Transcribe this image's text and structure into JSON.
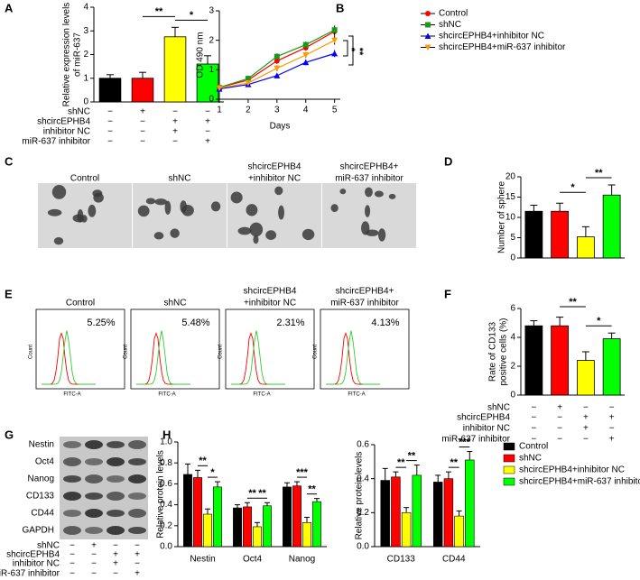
{
  "chart_data": [
    {
      "panel": "A",
      "type": "bar",
      "y_label": [
        "Relative expression levels",
        "of miR-637"
      ],
      "values": [
        1.0,
        1.0,
        2.75,
        1.6
      ],
      "errors": [
        0.15,
        0.25,
        0.4,
        0.35
      ],
      "colors": [
        "#000000",
        "#ff0000",
        "#ffff00",
        "#00ff00"
      ],
      "ylim": [
        0,
        4
      ],
      "yticks": [
        0,
        1,
        2,
        3,
        4
      ],
      "annotations": [
        "**",
        "*"
      ],
      "conditions": [
        {
          "label": "shNC",
          "marks": [
            "−",
            "+",
            "−",
            "−"
          ]
        },
        {
          "label": "shcircEPHB4",
          "marks": [
            "−",
            "−",
            "+",
            "+"
          ]
        },
        {
          "label": "inhibitor NC",
          "marks": [
            "−",
            "−",
            "+",
            "−"
          ]
        },
        {
          "label": "miR-637 inhibitor",
          "marks": [
            "−",
            "−",
            "−",
            "+"
          ]
        }
      ]
    },
    {
      "panel": "B",
      "type": "line",
      "x": [
        1,
        2,
        3,
        4,
        5
      ],
      "xlim": [
        1,
        5.2
      ],
      "xticks": [
        1,
        2,
        3,
        4,
        5
      ],
      "x_label": "Days",
      "y_label": "OD 490 nm",
      "ylim": [
        0,
        3
      ],
      "yticks": [
        0,
        1,
        2,
        3
      ],
      "series": [
        {
          "name": "Control",
          "color": "#ff0000",
          "marker": "circle",
          "values": [
            0.4,
            0.65,
            1.3,
            1.75,
            2.3
          ],
          "errors": [
            0.05,
            0.1,
            0.1,
            0.1,
            0.15
          ]
        },
        {
          "name": "shNC",
          "color": "#1a9a1a",
          "marker": "square",
          "values": [
            0.4,
            0.7,
            1.45,
            1.85,
            2.35
          ],
          "errors": [
            0.05,
            0.1,
            0.1,
            0.1,
            0.15
          ]
        },
        {
          "name": "shcircEPHB4+inhibitor NC",
          "color": "#0000ff",
          "marker": "triangle",
          "values": [
            0.35,
            0.5,
            0.8,
            1.25,
            1.55
          ],
          "errors": [
            0.05,
            0.05,
            0.08,
            0.1,
            0.12
          ]
        },
        {
          "name": "shcircEPHB4+miR-637 inhibitor",
          "color": "#ff9900",
          "marker": "triangle-down",
          "values": [
            0.38,
            0.55,
            1.05,
            1.5,
            2.0
          ],
          "errors": [
            0.05,
            0.08,
            0.1,
            0.1,
            0.15
          ]
        }
      ],
      "annotations": [
        "*",
        "**"
      ]
    },
    {
      "panel": "D",
      "type": "bar",
      "y_label": [
        "Number of sphere"
      ],
      "values": [
        11.5,
        11.5,
        5.2,
        15.5
      ],
      "errors": [
        1.5,
        2.0,
        2.5,
        2.5
      ],
      "colors": [
        "#000000",
        "#ff0000",
        "#ffff00",
        "#00ff00"
      ],
      "ylim": [
        0,
        20
      ],
      "yticks": [
        0,
        5,
        10,
        15,
        20
      ],
      "annotations": [
        "*",
        "**"
      ]
    },
    {
      "panel": "F",
      "type": "bar",
      "y_label": [
        "Rate of CD133",
        "positive cells (%)"
      ],
      "values": [
        4.8,
        4.8,
        2.4,
        3.9
      ],
      "errors": [
        0.35,
        0.6,
        0.6,
        0.4
      ],
      "colors": [
        "#000000",
        "#ff0000",
        "#ffff00",
        "#00ff00"
      ],
      "ylim": [
        0,
        6
      ],
      "yticks": [
        0,
        2,
        4,
        6
      ],
      "annotations": [
        "**",
        "*"
      ],
      "conditions": [
        {
          "label": "shNC",
          "marks": [
            "−",
            "+",
            "−",
            "−"
          ]
        },
        {
          "label": "shcircEPHB4",
          "marks": [
            "−",
            "−",
            "+",
            "+"
          ]
        },
        {
          "label": "inhibitor NC",
          "marks": [
            "−",
            "−",
            "+",
            "−"
          ]
        },
        {
          "label": "miR-637 inhibitor",
          "marks": [
            "−",
            "−",
            "−",
            "+"
          ]
        }
      ]
    },
    {
      "panel": "H",
      "type": "grouped_bar",
      "y_label": [
        "Relative protein levels"
      ],
      "categories": [
        "Nestin",
        "Oct4",
        "Nanog"
      ],
      "ylim": [
        0,
        1.0
      ],
      "yticks": [
        {
          "value": 0,
          "label": "0.0"
        },
        0.2,
        0.4,
        0.6,
        0.8,
        {
          "value": 1,
          "label": "1.0"
        }
      ],
      "series": [
        {
          "name": "Control",
          "color": "#000000",
          "values": [
            0.69,
            0.37,
            0.57
          ],
          "errors": [
            0.1,
            0.03,
            0.04
          ]
        },
        {
          "name": "shNC",
          "color": "#ff0000",
          "values": [
            0.66,
            0.38,
            0.58
          ],
          "errors": [
            0.07,
            0.04,
            0.04
          ]
        },
        {
          "name": "shcircEPHB4+inhibitor NC",
          "color": "#ffff00",
          "values": [
            0.31,
            0.19,
            0.23
          ],
          "errors": [
            0.05,
            0.04,
            0.05
          ]
        },
        {
          "name": "shcircEPHB4+miR-637 inhibitor",
          "color": "#00ff00",
          "values": [
            0.57,
            0.39,
            0.43
          ],
          "errors": [
            0.05,
            0.03,
            0.03
          ]
        }
      ],
      "annotations": [
        [
          "**",
          "*"
        ],
        [
          "**",
          "**"
        ],
        [
          "***",
          "**"
        ]
      ]
    },
    {
      "type": "grouped_bar",
      "y_label": [
        "Relative protein levels"
      ],
      "categories": [
        "CD133",
        "CD44"
      ],
      "ylim": [
        0,
        0.6
      ],
      "yticks": [
        {
          "value": 0,
          "label": "0.0"
        },
        0.2,
        0.4,
        0.6
      ],
      "series": [
        {
          "name": "Control",
          "color": "#000000",
          "values": [
            0.39,
            0.38
          ],
          "errors": [
            0.07,
            0.04
          ]
        },
        {
          "name": "shNC",
          "color": "#ff0000",
          "values": [
            0.41,
            0.4
          ],
          "errors": [
            0.03,
            0.04
          ]
        },
        {
          "name": "shcircEPHB4+inhibitor NC",
          "color": "#ffff00",
          "values": [
            0.2,
            0.18
          ],
          "errors": [
            0.03,
            0.03
          ]
        },
        {
          "name": "shcircEPHB4+miR-637 inhibitor",
          "color": "#00ff00",
          "values": [
            0.42,
            0.51
          ],
          "errors": [
            0.06,
            0.05
          ]
        }
      ],
      "annotations": [
        [
          "**",
          "**"
        ],
        [
          "**",
          "***"
        ]
      ],
      "legend": true
    }
  ],
  "panels": {
    "C": {
      "panel": "C",
      "images": [
        [
          "Control"
        ],
        [
          "shNC"
        ],
        [
          "shcircEPHB4",
          "+inhibitor NC"
        ],
        [
          "shcircEPHB4+",
          "miR-637 inhibitor"
        ]
      ]
    },
    "E": {
      "panel": "E",
      "images": [
        [
          "Control"
        ],
        [
          "shNC"
        ],
        [
          "shcircEPHB4",
          "+inhibitor NC"
        ],
        [
          "shcircEPHB4+",
          "miR-637 inhibitor"
        ]
      ],
      "percentages": [
        "5.25%",
        "5.48%",
        "2.31%",
        "4.13%"
      ],
      "y_label": "Count",
      "x_label": "FITC-A"
    },
    "G": {
      "panel": "G",
      "proteins": [
        "Nestin",
        "Oct4",
        "Nanog",
        "CD133",
        "CD44",
        "GAPDH"
      ],
      "conditions": [
        {
          "label": "shNC",
          "marks": [
            "−",
            "+",
            "−",
            "−"
          ]
        },
        {
          "label": "shcircEPHB4",
          "marks": [
            "−",
            "−",
            "+",
            "+"
          ]
        },
        {
          "label": "inhibitor NC",
          "marks": [
            "−",
            "−",
            "+",
            "−"
          ]
        },
        {
          "label": "miR-637 inhibitor",
          "marks": [
            "−",
            "−",
            "−",
            "+"
          ]
        }
      ]
    }
  }
}
